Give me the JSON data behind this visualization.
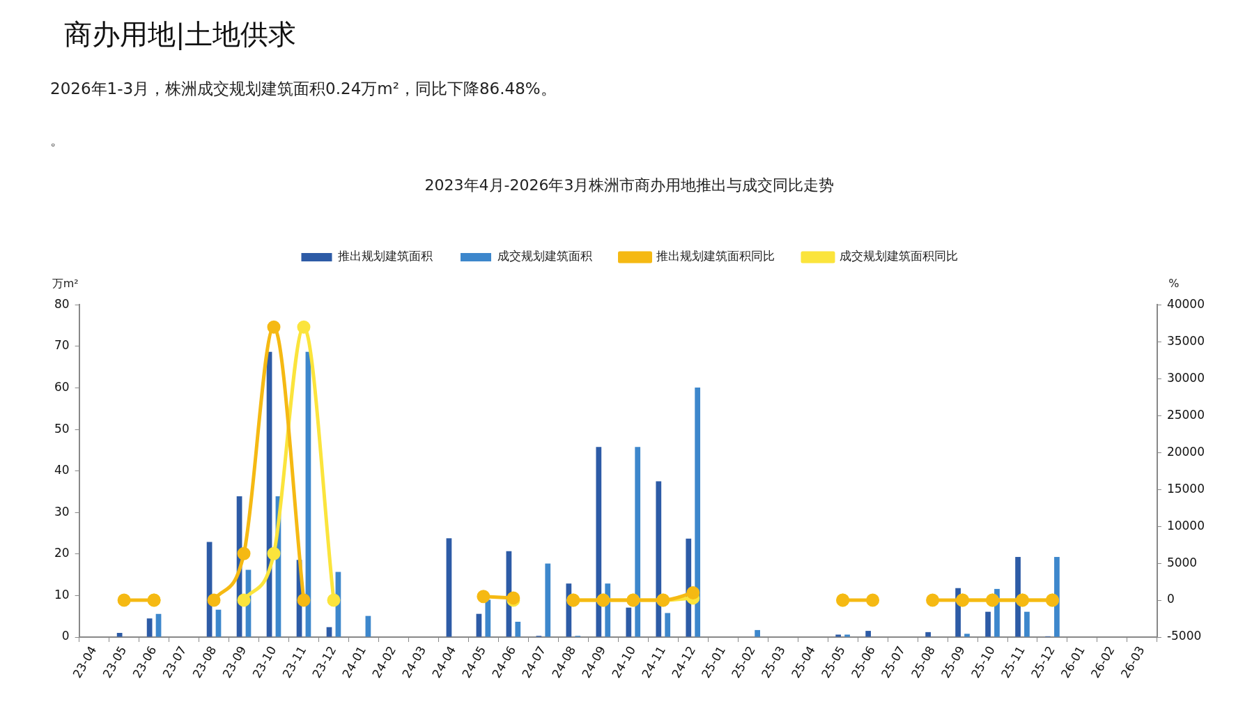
{
  "chart_data": {
    "type": "bar",
    "title": "2023年4月-2026年3月株洲市商办用地推出与成交同比走势",
    "annotations": [
      "商办用地|土地供求",
      "2026年1-3月，株洲成交规划建筑面积0.24万m²，同比下降86.48%。",
      "。"
    ],
    "ylabel": "万m²",
    "y2label": "%",
    "categories": [
      "23-04",
      "23-05",
      "23-06",
      "23-07",
      "23-08",
      "23-09",
      "23-10",
      "23-11",
      "23-12",
      "24-01",
      "24-02",
      "24-03",
      "24-04",
      "24-05",
      "24-06",
      "24-07",
      "24-08",
      "24-09",
      "24-10",
      "24-11",
      "24-12",
      "25-01",
      "25-02",
      "25-03",
      "25-04",
      "25-05",
      "25-06",
      "25-07",
      "25-08",
      "25-09",
      "25-10",
      "25-11",
      "25-12",
      "26-01",
      "26-02",
      "26-03"
    ],
    "series": [
      {
        "name": "推出规划建筑面积",
        "color": "#2d5ba6",
        "values": [
          null,
          1.0,
          4.5,
          null,
          22.9,
          33.9,
          68.7,
          18.6,
          2.4,
          null,
          null,
          null,
          23.8,
          5.6,
          20.7,
          0.3,
          12.9,
          45.8,
          7.1,
          37.5,
          23.7,
          null,
          null,
          null,
          null,
          0.6,
          1.5,
          null,
          1.2,
          11.8,
          6.1,
          19.3,
          0.2,
          null,
          null,
          null
        ]
      },
      {
        "name": "成交规划建筑面积",
        "color": "#3d87cc",
        "values": [
          null,
          null,
          5.6,
          null,
          6.6,
          16.2,
          33.9,
          68.7,
          15.7,
          5.1,
          null,
          null,
          null,
          9,
          3.7,
          17.7,
          0.3,
          12.9,
          45.8,
          5.8,
          60.1,
          null,
          1.7,
          null,
          null,
          0.6,
          null,
          null,
          null,
          0.8,
          11.6,
          6.1,
          19.3,
          0.1,
          null,
          null
        ]
      },
      {
        "name": "推出规划建筑面积同比",
        "type": "line",
        "axis": "y2",
        "color": "#f5b913",
        "values": [
          null,
          0,
          0,
          null,
          0,
          6300,
          37000,
          0,
          null,
          null,
          null,
          null,
          null,
          500,
          300,
          null,
          0,
          0,
          0,
          0,
          1000,
          null,
          null,
          null,
          null,
          0,
          0,
          null,
          0,
          0,
          0,
          0,
          0,
          null,
          null,
          null
        ]
      },
      {
        "name": "成交规划建筑面积同比",
        "type": "line",
        "axis": "y2",
        "color": "#fbe43c",
        "values": [
          null,
          null,
          0,
          null,
          null,
          0,
          6300,
          37000,
          0,
          null,
          null,
          null,
          null,
          null,
          0,
          null,
          0,
          0,
          0,
          0,
          300,
          null,
          null,
          null,
          null,
          0,
          null,
          null,
          null,
          0,
          0,
          0,
          0,
          null,
          null,
          null
        ]
      }
    ],
    "ylim": [
      0,
      80
    ],
    "yticks": [
      0,
      10,
      20,
      30,
      40,
      50,
      60,
      70,
      80
    ],
    "y2lim": [
      -5000,
      40000
    ],
    "y2ticks": [
      -5000,
      0,
      5000,
      10000,
      15000,
      20000,
      25000,
      30000,
      35000,
      40000
    ],
    "grid": false,
    "legend": "top",
    "marker": "circle",
    "line_style": "solid"
  }
}
